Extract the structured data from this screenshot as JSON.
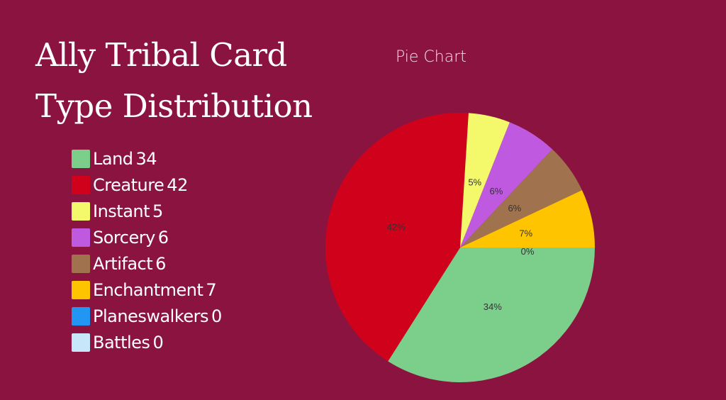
{
  "page": {
    "title_line1": "Ally Tribal Card",
    "title_line2": "Type Distribution",
    "background_color": "#8b1340"
  },
  "legend": {
    "items": [
      {
        "label": "Land",
        "value": "34",
        "color": "#7bcf8b"
      },
      {
        "label": "Creature",
        "value": "42",
        "color": "#d0021b"
      },
      {
        "label": "Instant",
        "value": "5",
        "color": "#f3f96b"
      },
      {
        "label": "Sorcery",
        "value": "6",
        "color": "#bf5ae0"
      },
      {
        "label": "Artifact",
        "value": "6",
        "color": "#a0734e"
      },
      {
        "label": "Enchantment",
        "value": "7",
        "color": "#ffc400"
      },
      {
        "label": "Planeswalkers",
        "value": "0",
        "color": "#2196f3"
      },
      {
        "label": "Battles",
        "value": "0",
        "color": "#c8e6fa"
      }
    ]
  },
  "chart_data": {
    "type": "pie",
    "title": "Pie Chart",
    "categories": [
      "Land",
      "Creature",
      "Instant",
      "Sorcery",
      "Artifact",
      "Enchantment",
      "Planeswalkers",
      "Battles"
    ],
    "values": [
      34,
      42,
      5,
      6,
      6,
      7,
      0,
      0
    ],
    "percent_labels": [
      "34%",
      "42%",
      "5%",
      "6%",
      "6%",
      "7%",
      "0%",
      "0%"
    ],
    "colors": [
      "#7bcf8b",
      "#d0021b",
      "#f3f96b",
      "#bf5ae0",
      "#a0734e",
      "#ffc400",
      "#2196f3",
      "#c8e6fa"
    ],
    "start_angle": "3 o'clock, clockwise",
    "legend_position": "left"
  }
}
